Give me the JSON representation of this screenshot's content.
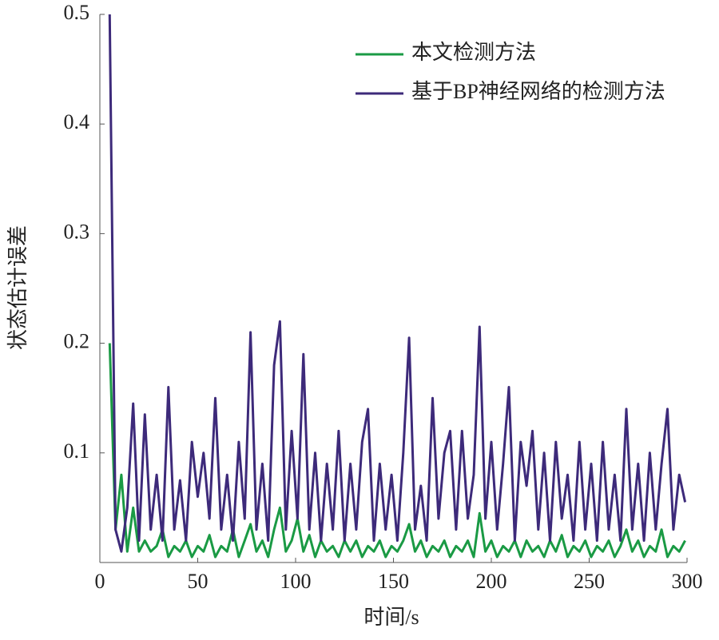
{
  "chart_data": {
    "type": "line",
    "xlabel": "时间/s",
    "ylabel": "状态估计误差",
    "x": [
      5,
      8,
      11,
      14,
      17,
      20,
      23,
      26,
      29,
      32,
      35,
      38,
      41,
      44,
      47,
      50,
      53,
      56,
      59,
      62,
      65,
      68,
      71,
      74,
      77,
      80,
      83,
      86,
      89,
      92,
      95,
      98,
      101,
      104,
      107,
      110,
      113,
      116,
      119,
      122,
      125,
      128,
      131,
      134,
      137,
      140,
      143,
      146,
      149,
      152,
      155,
      158,
      161,
      164,
      167,
      170,
      173,
      176,
      179,
      182,
      185,
      188,
      191,
      194,
      197,
      200,
      203,
      206,
      209,
      212,
      215,
      218,
      221,
      224,
      227,
      230,
      233,
      236,
      239,
      242,
      245,
      248,
      251,
      254,
      257,
      260,
      263,
      266,
      269,
      272,
      275,
      278,
      281,
      284,
      287,
      290,
      293,
      296,
      299
    ],
    "series": [
      {
        "name": "本文检测方法",
        "color": "#1a9a44",
        "values": [
          0.2,
          0.03,
          0.08,
          0.01,
          0.05,
          0.01,
          0.02,
          0.01,
          0.015,
          0.03,
          0.005,
          0.015,
          0.01,
          0.02,
          0.005,
          0.015,
          0.01,
          0.025,
          0.005,
          0.015,
          0.01,
          0.03,
          0.005,
          0.02,
          0.035,
          0.01,
          0.02,
          0.005,
          0.03,
          0.05,
          0.01,
          0.02,
          0.04,
          0.01,
          0.025,
          0.005,
          0.02,
          0.01,
          0.015,
          0.005,
          0.02,
          0.01,
          0.02,
          0.005,
          0.015,
          0.01,
          0.02,
          0.005,
          0.015,
          0.01,
          0.02,
          0.035,
          0.01,
          0.02,
          0.005,
          0.015,
          0.01,
          0.02,
          0.005,
          0.015,
          0.01,
          0.02,
          0.005,
          0.045,
          0.01,
          0.02,
          0.005,
          0.015,
          0.01,
          0.02,
          0.005,
          0.02,
          0.01,
          0.015,
          0.005,
          0.02,
          0.01,
          0.025,
          0.005,
          0.015,
          0.01,
          0.02,
          0.005,
          0.015,
          0.01,
          0.02,
          0.005,
          0.015,
          0.03,
          0.01,
          0.02,
          0.005,
          0.015,
          0.01,
          0.03,
          0.005,
          0.015,
          0.01,
          0.02
        ]
      },
      {
        "name": "基于BP神经网络的检测方法",
        "color": "#3d2a7a",
        "values": [
          0.5,
          0.03,
          0.01,
          0.05,
          0.145,
          0.02,
          0.135,
          0.03,
          0.08,
          0.02,
          0.16,
          0.03,
          0.075,
          0.02,
          0.11,
          0.06,
          0.1,
          0.04,
          0.15,
          0.03,
          0.08,
          0.02,
          0.11,
          0.04,
          0.21,
          0.03,
          0.09,
          0.02,
          0.18,
          0.22,
          0.03,
          0.12,
          0.04,
          0.19,
          0.03,
          0.1,
          0.02,
          0.09,
          0.03,
          0.12,
          0.02,
          0.09,
          0.03,
          0.11,
          0.14,
          0.02,
          0.09,
          0.03,
          0.08,
          0.02,
          0.1,
          0.205,
          0.03,
          0.07,
          0.02,
          0.15,
          0.04,
          0.1,
          0.12,
          0.03,
          0.12,
          0.04,
          0.08,
          0.215,
          0.04,
          0.11,
          0.03,
          0.09,
          0.16,
          0.02,
          0.11,
          0.07,
          0.12,
          0.03,
          0.1,
          0.02,
          0.11,
          0.04,
          0.08,
          0.02,
          0.11,
          0.03,
          0.09,
          0.02,
          0.11,
          0.03,
          0.08,
          0.02,
          0.14,
          0.03,
          0.09,
          0.02,
          0.1,
          0.03,
          0.09,
          0.14,
          0.03,
          0.08,
          0.055
        ]
      }
    ],
    "xlim": [
      0,
      300
    ],
    "xticks": [
      0,
      50,
      100,
      150,
      200,
      250,
      300
    ],
    "ylim": [
      0,
      0.5
    ],
    "yticks": [
      0.1,
      0.2,
      0.3,
      0.4,
      0.5
    ],
    "legend": "top-right"
  }
}
